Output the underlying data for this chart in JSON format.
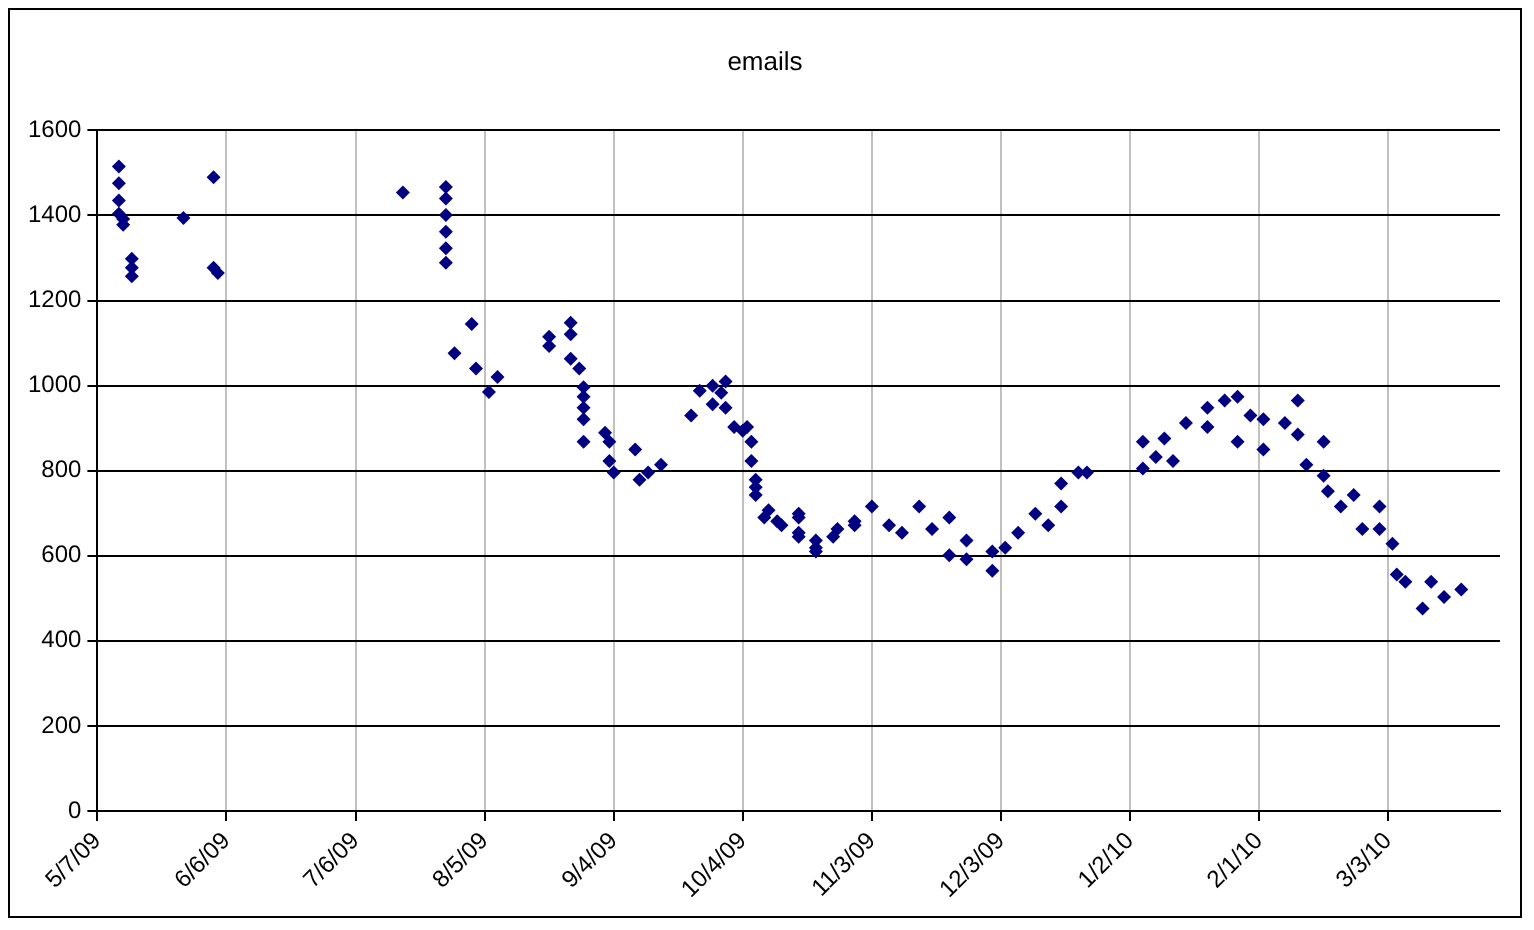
{
  "chart_data": {
    "type": "scatter",
    "title": "emails",
    "marker": "diamond",
    "grid": true,
    "legend": false,
    "xlim": [
      "2009-05-07",
      "2010-03-29"
    ],
    "xticks": [
      {
        "value": "2009-05-07",
        "label": "5/7/09"
      },
      {
        "value": "2009-06-06",
        "label": "6/6/09"
      },
      {
        "value": "2009-07-06",
        "label": "7/6/09"
      },
      {
        "value": "2009-08-05",
        "label": "8/5/09"
      },
      {
        "value": "2009-09-04",
        "label": "9/4/09"
      },
      {
        "value": "2009-10-04",
        "label": "10/4/09"
      },
      {
        "value": "2009-11-03",
        "label": "11/3/09"
      },
      {
        "value": "2009-12-03",
        "label": "12/3/09"
      },
      {
        "value": "2010-01-02",
        "label": "1/2/10"
      },
      {
        "value": "2010-02-01",
        "label": "2/1/10"
      },
      {
        "value": "2010-03-03",
        "label": "3/3/10"
      }
    ],
    "ylim": [
      0,
      1600
    ],
    "yticks": [
      0,
      200,
      400,
      600,
      800,
      1000,
      1200,
      1400,
      1600
    ],
    "series": [
      {
        "color": "#000080",
        "x": [
          "2009-05-12",
          "2009-05-12",
          "2009-05-12",
          "2009-05-12",
          "2009-05-13",
          "2009-05-13",
          "2009-05-15",
          "2009-05-15",
          "2009-05-15",
          "2009-05-27",
          "2009-06-03",
          "2009-06-03",
          "2009-06-04",
          "2009-07-17",
          "2009-07-27",
          "2009-07-27",
          "2009-07-27",
          "2009-07-27",
          "2009-07-27",
          "2009-07-27",
          "2009-07-29",
          "2009-08-02",
          "2009-08-03",
          "2009-08-06",
          "2009-08-08",
          "2009-08-20",
          "2009-08-20",
          "2009-08-25",
          "2009-08-25",
          "2009-08-25",
          "2009-08-27",
          "2009-08-28",
          "2009-08-28",
          "2009-08-28",
          "2009-08-28",
          "2009-08-28",
          "2009-09-02",
          "2009-09-03",
          "2009-09-03",
          "2009-09-04",
          "2009-09-09",
          "2009-09-10",
          "2009-09-12",
          "2009-09-15",
          "2009-09-22",
          "2009-09-24",
          "2009-09-27",
          "2009-09-27",
          "2009-09-29",
          "2009-09-30",
          "2009-09-30",
          "2009-10-02",
          "2009-10-04",
          "2009-10-05",
          "2009-10-06",
          "2009-10-06",
          "2009-10-07",
          "2009-10-07",
          "2009-10-07",
          "2009-10-09",
          "2009-10-10",
          "2009-10-12",
          "2009-10-13",
          "2009-10-17",
          "2009-10-17",
          "2009-10-17",
          "2009-10-17",
          "2009-10-21",
          "2009-10-21",
          "2009-10-21",
          "2009-10-25",
          "2009-10-26",
          "2009-10-30",
          "2009-10-30",
          "2009-11-03",
          "2009-11-07",
          "2009-11-10",
          "2009-11-14",
          "2009-11-17",
          "2009-11-21",
          "2009-11-21",
          "2009-11-25",
          "2009-11-25",
          "2009-12-01",
          "2009-12-01",
          "2009-12-04",
          "2009-12-07",
          "2009-12-11",
          "2009-12-14",
          "2009-12-17",
          "2009-12-17",
          "2009-12-21",
          "2009-12-23",
          "2010-01-05",
          "2010-01-05",
          "2010-01-08",
          "2010-01-10",
          "2010-01-12",
          "2010-01-15",
          "2010-01-20",
          "2010-01-20",
          "2010-01-24",
          "2010-01-27",
          "2010-01-27",
          "2010-01-30",
          "2010-02-02",
          "2010-02-02",
          "2010-02-07",
          "2010-02-10",
          "2010-02-10",
          "2010-02-12",
          "2010-02-16",
          "2010-02-16",
          "2010-02-17",
          "2010-02-20",
          "2010-02-23",
          "2010-02-25",
          "2010-03-01",
          "2010-03-01",
          "2010-03-04",
          "2010-03-05",
          "2010-03-07",
          "2010-03-11",
          "2010-03-13",
          "2010-03-16",
          "2010-03-20"
        ],
        "values": [
          1515,
          1476,
          1435,
          1404,
          1392,
          1378,
          1298,
          1277,
          1257,
          1394,
          1490,
          1277,
          1265,
          1454,
          1467,
          1440,
          1401,
          1362,
          1323,
          1289,
          1076,
          1145,
          1040,
          985,
          1020,
          1115,
          1093,
          1148,
          1121,
          1063,
          1040,
          996,
          974,
          948,
          921,
          868,
          889,
          868,
          823,
          796,
          850,
          779,
          796,
          814,
          930,
          988,
          1000,
          956,
          983,
          1010,
          948,
          903,
          894,
          903,
          868,
          823,
          779,
          761,
          743,
          690,
          707,
          681,
          672,
          690,
          699,
          654,
          645,
          636,
          619,
          610,
          645,
          663,
          672,
          681,
          716,
          672,
          654,
          716,
          663,
          690,
          601,
          636,
          592,
          610,
          565,
          619,
          654,
          699,
          672,
          716,
          770,
          796,
          796,
          868,
          805,
          832,
          876,
          823,
          912,
          948,
          903,
          965,
          974,
          868,
          930,
          921,
          850,
          912,
          965,
          885,
          814,
          868,
          788,
          752,
          716,
          743,
          663,
          716,
          663,
          628,
          556,
          539,
          476,
          539,
          503,
          521
        ]
      }
    ]
  }
}
